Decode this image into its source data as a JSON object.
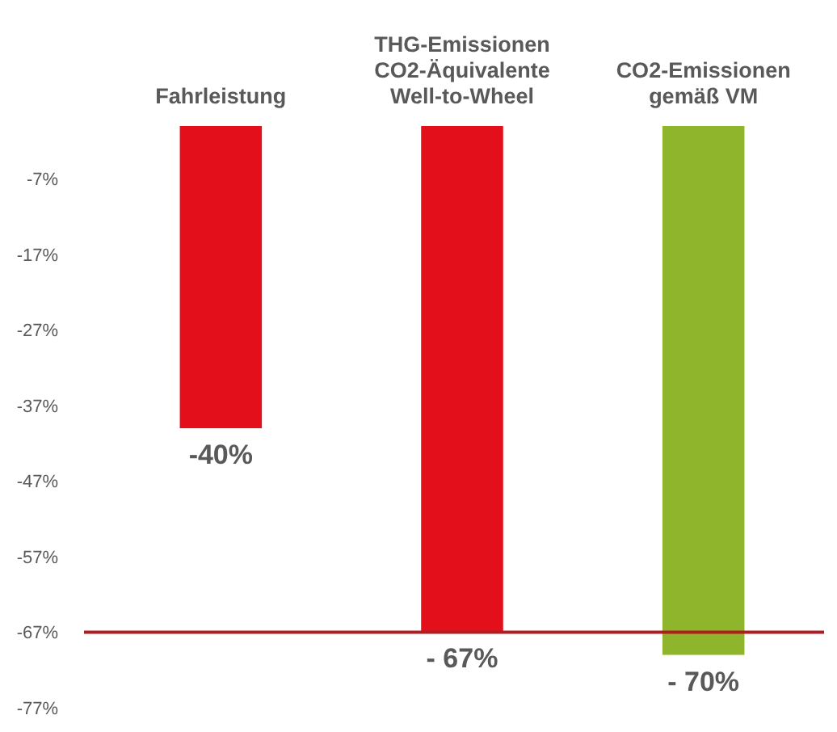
{
  "chart_data": {
    "type": "bar",
    "categories": [
      "Fahrleistung",
      "THG-Emissionen\nCO2-Äquivalente\nWell-to-Wheel",
      "CO2-Emissionen\ngemäß VM"
    ],
    "values": [
      -40,
      -67,
      -70
    ],
    "colors": [
      "#e30f1b",
      "#e30f1b",
      "#8fb52c"
    ],
    "value_labels": [
      "-40%",
      "- 67%",
      "- 70%"
    ],
    "ylim": [
      -77,
      0
    ],
    "yticks": [
      {
        "value": -7,
        "label": "-7%"
      },
      {
        "value": -17,
        "label": "-17%"
      },
      {
        "value": -27,
        "label": "-27%"
      },
      {
        "value": -37,
        "label": "-37%"
      },
      {
        "value": -47,
        "label": "-47%"
      },
      {
        "value": -57,
        "label": "-57%"
      },
      {
        "value": -67,
        "label": "-67%"
      },
      {
        "value": -77,
        "label": "-77%"
      }
    ],
    "ref_lines": [
      {
        "axis": "y",
        "value": -67,
        "color": "#b01c22"
      }
    ]
  }
}
